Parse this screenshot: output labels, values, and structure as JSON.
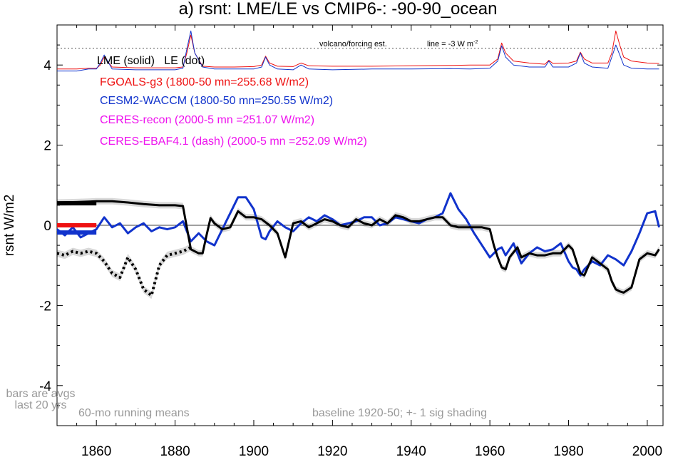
{
  "chart_data": {
    "type": "line",
    "title": "a) rsnt: LME/LE vs CMIP6-: -90-90_ocean",
    "xlabel": "",
    "ylabel": "rsnt W/m2",
    "xlim": [
      1850,
      2004
    ],
    "ylim": [
      -5,
      5
    ],
    "x_ticks": [
      1860,
      1880,
      1900,
      1920,
      1940,
      1960,
      1980,
      2000
    ],
    "y_ticks": [
      4,
      2,
      0,
      -2,
      -4
    ],
    "y_tick_labels": [
      "4",
      "2",
      "0",
      "-2",
      "-4"
    ],
    "grid": false,
    "reference_line": 0,
    "forcing_reference_line": 4.42,
    "legend": {
      "placement": "top-left",
      "header": "LME (solid)   LE (dot)",
      "entries": [
        {
          "label": "FGOALS-g3 (1800-50 mn=255.68 W/m2)",
          "color": "#ee1111"
        },
        {
          "label": "CESM2-WACCM (1800-50 mn=250.55 W/m2)",
          "color": "#1133cc"
        },
        {
          "label": "CERES-recon (2000-5 mn =251.07 W/m2)",
          "color": "#ee11ee"
        },
        {
          "label": "CERES-EBAF4.1 (dash) (2000-5 mn =252.09 W/m2)",
          "color": "#ee11ee"
        }
      ]
    },
    "annotations": {
      "volcano": "volcano/forcing est.",
      "line_scale": "line = -3 W m",
      "line_scale_sup": "-2",
      "bars_note_1": "bars are avgs",
      "bars_note_2": "last 20 yrs",
      "running": "60-mo running means",
      "baseline": "baseline 1920-50; +- 1 sig shading"
    },
    "series": [
      {
        "name": "LME (solid)",
        "color": "#000000",
        "style": "solid",
        "x": [
          1850,
          1855,
          1860,
          1864,
          1868,
          1872,
          1876,
          1880,
          1882,
          1884,
          1886,
          1887,
          1888,
          1889,
          1890,
          1892,
          1894,
          1896,
          1898,
          1900,
          1902,
          1904,
          1906,
          1908,
          1910,
          1912,
          1914,
          1916,
          1918,
          1920,
          1922,
          1924,
          1926,
          1928,
          1930,
          1932,
          1934,
          1936,
          1938,
          1940,
          1942,
          1944,
          1946,
          1948,
          1950,
          1952,
          1954,
          1956,
          1958,
          1960,
          1961,
          1962,
          1963,
          1964,
          1965,
          1967,
          1968,
          1970,
          1972,
          1974,
          1976,
          1978,
          1980,
          1981,
          1982,
          1983,
          1984,
          1986,
          1988,
          1990,
          1991,
          1992,
          1993,
          1994,
          1996,
          1998,
          2000,
          2002,
          2003
        ],
        "y": [
          0.57,
          0.58,
          0.6,
          0.6,
          0.57,
          0.53,
          0.5,
          0.5,
          0.48,
          -0.6,
          -0.7,
          -0.7,
          -0.25,
          0.18,
          0.05,
          -0.1,
          -0.05,
          0.35,
          0.2,
          0.2,
          0.15,
          0.0,
          -0.2,
          -0.8,
          0.05,
          0.1,
          -0.05,
          0.05,
          0.15,
          0.1,
          0.0,
          -0.05,
          0.15,
          0.05,
          0.0,
          0.15,
          0.05,
          0.25,
          0.2,
          0.1,
          0.1,
          0.15,
          0.2,
          0.2,
          0.0,
          -0.05,
          -0.05,
          -0.05,
          -0.05,
          -0.1,
          -0.5,
          -0.8,
          -1.05,
          -1.1,
          -0.8,
          -0.55,
          -0.8,
          -0.7,
          -0.75,
          -0.75,
          -0.7,
          -0.7,
          -0.5,
          -0.6,
          -0.9,
          -1.2,
          -1.25,
          -0.8,
          -0.95,
          -1.1,
          -1.4,
          -1.6,
          -1.65,
          -1.68,
          -1.55,
          -0.85,
          -0.7,
          -0.75,
          -0.6
        ]
      },
      {
        "name": "LE (dot)",
        "color": "#000000",
        "style": "dotted",
        "x": [
          1850,
          1852,
          1854,
          1856,
          1858,
          1860,
          1862,
          1864,
          1866,
          1868,
          1870,
          1872,
          1874,
          1876,
          1878,
          1880,
          1882,
          1884
        ],
        "y": [
          -0.7,
          -0.75,
          -0.65,
          -0.7,
          -0.65,
          -0.7,
          -0.9,
          -1.2,
          -1.3,
          -0.8,
          -1.1,
          -1.6,
          -1.75,
          -1.0,
          -0.75,
          -0.7,
          -0.65,
          -0.55
        ]
      },
      {
        "name": "CESM2-WACCM",
        "color": "#1133cc",
        "style": "solid",
        "x": [
          1850,
          1852,
          1854,
          1856,
          1858,
          1860,
          1862,
          1864,
          1866,
          1868,
          1870,
          1872,
          1874,
          1876,
          1878,
          1880,
          1882,
          1884,
          1886,
          1888,
          1890,
          1892,
          1894,
          1896,
          1898,
          1900,
          1902,
          1903,
          1904,
          1906,
          1908,
          1910,
          1912,
          1914,
          1916,
          1918,
          1920,
          1922,
          1924,
          1926,
          1928,
          1930,
          1932,
          1934,
          1936,
          1938,
          1940,
          1942,
          1944,
          1946,
          1948,
          1950,
          1952,
          1954,
          1956,
          1958,
          1960,
          1962,
          1963,
          1964,
          1966,
          1968,
          1970,
          1972,
          1974,
          1976,
          1978,
          1980,
          1981,
          1982,
          1983,
          1984,
          1986,
          1988,
          1990,
          1992,
          1994,
          1996,
          1998,
          2000,
          2002,
          2003
        ],
        "y": [
          -0.1,
          -0.25,
          -0.05,
          -0.3,
          -0.2,
          -0.1,
          0.2,
          -0.05,
          0.05,
          -0.2,
          -0.05,
          0.05,
          -0.15,
          -0.05,
          -0.1,
          -0.05,
          0.1,
          -0.4,
          -0.2,
          -0.4,
          -0.5,
          -0.1,
          0.3,
          0.7,
          0.7,
          0.4,
          -0.3,
          -0.35,
          -0.15,
          0.1,
          -0.05,
          -0.15,
          0.05,
          0.2,
          0.1,
          0.25,
          0.15,
          0.0,
          0.05,
          0.1,
          0.2,
          0.2,
          0.0,
          0.05,
          0.2,
          0.15,
          0.1,
          0.05,
          0.15,
          0.2,
          0.3,
          0.8,
          0.4,
          0.15,
          -0.2,
          -0.5,
          -0.8,
          -0.6,
          -0.55,
          -0.75,
          -0.45,
          -0.95,
          -0.7,
          -0.55,
          -0.65,
          -0.6,
          -0.45,
          -0.9,
          -1.05,
          -1.1,
          -1.25,
          -1.1,
          -0.9,
          -1.0,
          -0.75,
          -0.85,
          -1.0,
          -0.65,
          -0.2,
          0.3,
          0.35,
          -0.05
        ]
      },
      {
        "name": "FGOALS-g3 forcing",
        "color": "#ee1111",
        "style": "solid",
        "x": [
          1850,
          1855,
          1858,
          1860,
          1861,
          1862,
          1864,
          1870,
          1875,
          1880,
          1882,
          1883,
          1884,
          1885,
          1887,
          1890,
          1895,
          1900,
          1902,
          1903,
          1904,
          1906,
          1910,
          1912,
          1914,
          1920,
          1930,
          1940,
          1950,
          1955,
          1960,
          1962,
          1963,
          1964,
          1966,
          1970,
          1974,
          1975,
          1976,
          1980,
          1982,
          1983,
          1984,
          1986,
          1990,
          1991,
          1992,
          1993,
          1994,
          1996,
          2000,
          2003
        ],
        "y": [
          3.9,
          3.9,
          3.92,
          3.92,
          4.0,
          4.2,
          3.95,
          3.93,
          3.93,
          3.93,
          3.95,
          4.3,
          4.75,
          4.3,
          3.97,
          3.95,
          3.95,
          3.96,
          4.0,
          4.22,
          4.05,
          3.97,
          3.96,
          4.05,
          3.98,
          3.97,
          3.97,
          3.98,
          3.99,
          4.0,
          4.0,
          4.15,
          4.55,
          4.3,
          4.1,
          4.05,
          4.02,
          4.12,
          4.04,
          4.05,
          4.1,
          4.32,
          4.15,
          4.05,
          4.05,
          4.3,
          4.85,
          4.5,
          4.2,
          4.1,
          4.05,
          4.04
        ]
      },
      {
        "name": "CESM2-WACCM forcing",
        "color": "#1133cc",
        "style": "solid",
        "x": [
          1850,
          1855,
          1858,
          1860,
          1861,
          1862,
          1864,
          1870,
          1875,
          1880,
          1882,
          1883,
          1884,
          1885,
          1887,
          1890,
          1895,
          1900,
          1902,
          1903,
          1904,
          1906,
          1910,
          1912,
          1914,
          1920,
          1930,
          1940,
          1950,
          1955,
          1960,
          1962,
          1963,
          1964,
          1966,
          1970,
          1974,
          1975,
          1976,
          1980,
          1982,
          1983,
          1984,
          1986,
          1990,
          1991,
          1992,
          1993,
          1994,
          1996,
          2000,
          2003
        ],
        "y": [
          3.85,
          3.85,
          3.9,
          3.9,
          4.05,
          4.25,
          3.9,
          3.88,
          3.88,
          3.88,
          3.92,
          4.4,
          4.85,
          4.3,
          3.95,
          3.9,
          3.9,
          3.9,
          3.95,
          4.2,
          4.0,
          3.9,
          3.88,
          4.0,
          3.9,
          3.88,
          3.9,
          3.9,
          3.91,
          3.9,
          3.92,
          4.1,
          4.48,
          4.2,
          4.0,
          3.95,
          3.95,
          4.1,
          3.95,
          3.95,
          4.05,
          4.3,
          4.05,
          3.95,
          3.92,
          4.2,
          4.5,
          4.25,
          4.0,
          3.92,
          3.9,
          3.9
        ]
      }
    ],
    "bars": [
      {
        "name": "LME avg",
        "color": "#000000",
        "y": 0.55,
        "x": [
          1850,
          1860
        ]
      },
      {
        "name": "FGOALS-g3 avg",
        "color": "#ee1111",
        "y": 0.0,
        "x": [
          1850,
          1860
        ]
      },
      {
        "name": "CESM2-WACCM avg",
        "color": "#1133cc",
        "y": -0.18,
        "x": [
          1850,
          1860
        ]
      }
    ]
  }
}
